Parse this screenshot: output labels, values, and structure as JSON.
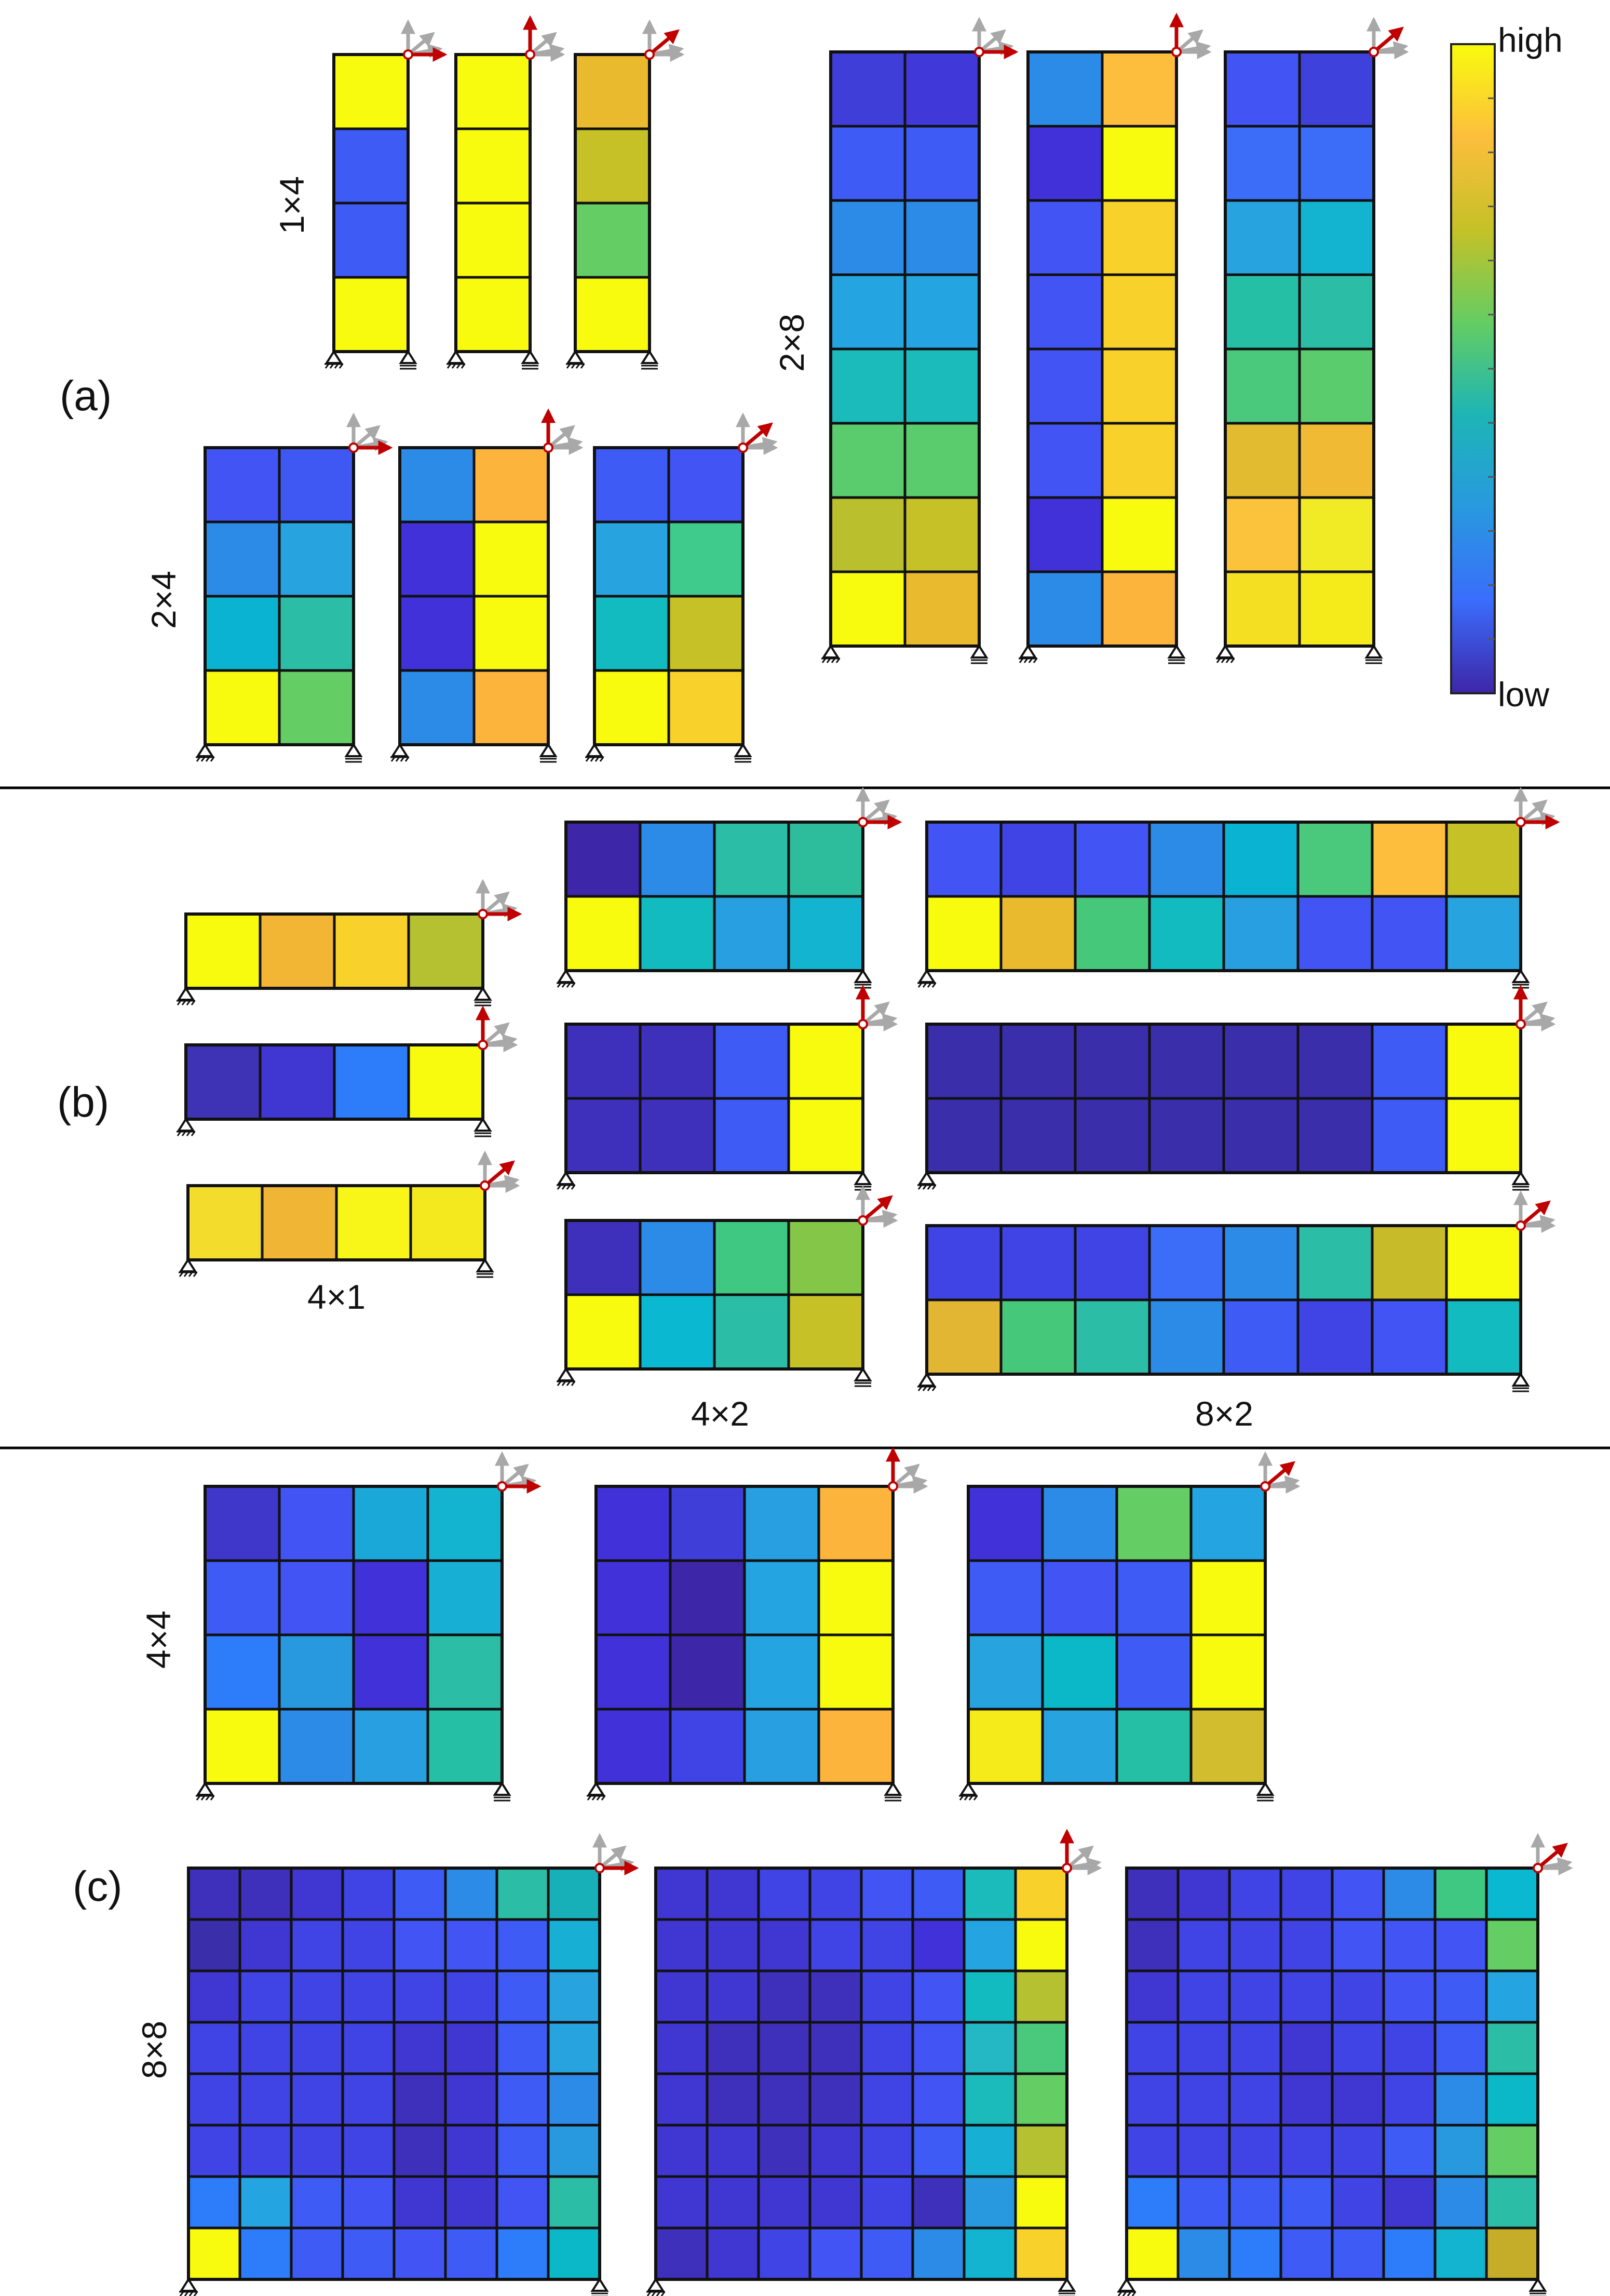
{
  "colorbar": {
    "high_label": "high",
    "low_label": "low",
    "stops": [
      "#f9fb0e",
      "#fcbe3c",
      "#c5c127",
      "#64cd63",
      "#1db5b5",
      "#2899df",
      "#3a6dfc",
      "#3e26a8"
    ]
  },
  "sections": [
    {
      "label": "(a)",
      "groups": [
        {
          "label": "1×4",
          "label_position": "left",
          "cols": 1,
          "rows": 4,
          "panels": [
            {
              "load": "horizontal",
              "cells": [
                [
                  "#f9fb0e"
                ],
                [
                  "#3e5bf5"
                ],
                [
                  "#3e5bf5"
                ],
                [
                  "#f9fb0e"
                ]
              ]
            },
            {
              "load": "vertical",
              "cells": [
                [
                  "#f9fb0e"
                ],
                [
                  "#f9fb0e"
                ],
                [
                  "#f9fb0e"
                ],
                [
                  "#f9fb0e"
                ]
              ]
            },
            {
              "load": "diagonal",
              "cells": [
                [
                  "#e9b92e"
                ],
                [
                  "#c5c127"
                ],
                [
                  "#64cd63"
                ],
                [
                  "#f9fb0e"
                ]
              ]
            }
          ]
        },
        {
          "label": "2×4",
          "label_position": "left",
          "cols": 2,
          "rows": 4,
          "panels": [
            {
              "load": "horizontal",
              "cells": [
                [
                  "#4255f4",
                  "#4058f3"
                ],
                [
                  "#2d8be8",
                  "#27a3e0"
                ],
                [
                  "#0ab3d2",
                  "#2cbda6"
                ],
                [
                  "#f9fb0e",
                  "#64cd63"
                ]
              ]
            },
            {
              "load": "vertical",
              "cells": [
                [
                  "#2d8be8",
                  "#fcb43c"
                ],
                [
                  "#4032d8",
                  "#f9fb0e"
                ],
                [
                  "#4032d8",
                  "#f9fb0e"
                ],
                [
                  "#2d8be8",
                  "#fcb43c"
                ]
              ]
            },
            {
              "load": "diagonal",
              "cells": [
                [
                  "#3e5bf5",
                  "#4255f4"
                ],
                [
                  "#27a3e0",
                  "#3fcb8b"
                ],
                [
                  "#12bbbf",
                  "#c5c127"
                ],
                [
                  "#f9fb0e",
                  "#f8d22a"
                ]
              ]
            }
          ]
        },
        {
          "label": "2×8",
          "label_position": "left",
          "cols": 2,
          "rows": 8,
          "panels": [
            {
              "load": "horizontal",
              "cells": [
                [
                  "#403ed9",
                  "#4038d9"
                ],
                [
                  "#3e5bf5",
                  "#3e5bf5"
                ],
                [
                  "#2d8be8",
                  "#2d8be8"
                ],
                [
                  "#24a4e0",
                  "#24a4e0"
                ],
                [
                  "#1cbbbb",
                  "#1cbbbb"
                ],
                [
                  "#5acc6e",
                  "#5acc6e"
                ],
                [
                  "#b9bf2d",
                  "#c5c127"
                ],
                [
                  "#f9fb0e",
                  "#e9b92e"
                ]
              ]
            },
            {
              "load": "vertical",
              "cells": [
                [
                  "#2d8be8",
                  "#fcbe3c"
                ],
                [
                  "#4032d8",
                  "#f9fb0e"
                ],
                [
                  "#4255f4",
                  "#f8d22a"
                ],
                [
                  "#4255f4",
                  "#f8d22a"
                ],
                [
                  "#4255f4",
                  "#f8d22a"
                ],
                [
                  "#4255f4",
                  "#f8d22a"
                ],
                [
                  "#4032d8",
                  "#f9fb0e"
                ],
                [
                  "#2d8be8",
                  "#fcb43c"
                ]
              ]
            },
            {
              "load": "diagonal",
              "cells": [
                [
                  "#4255f4",
                  "#3f41dd"
                ],
                [
                  "#3b6df9",
                  "#3b6df9"
                ],
                [
                  "#27a3e0",
                  "#12b4cf"
                ],
                [
                  "#25bfa5",
                  "#2cbda6"
                ],
                [
                  "#4ac87c",
                  "#5acc6e"
                ],
                [
                  "#e2bb31",
                  "#f0ba34"
                ],
                [
                  "#fbc23c",
                  "#f0eb24"
                ],
                [
                  "#f5df23",
                  "#f5eb1b"
                ]
              ]
            }
          ]
        }
      ]
    },
    {
      "label": "(b)",
      "groups": [
        {
          "label": "4×1",
          "label_position": "below",
          "cols": 4,
          "rows": 1,
          "panels": [
            {
              "load": "horizontal",
              "cells": [
                [
                  "#f9fb0e",
                  "#f2b534",
                  "#f8d22a",
                  "#b5c131"
                ]
              ]
            },
            {
              "load": "vertical",
              "cells": [
                [
                  "#3e32b5",
                  "#4036d2",
                  "#2d7cfa",
                  "#f9fb0e"
                ]
              ]
            },
            {
              "load": "diagonal",
              "cells": [
                [
                  "#f4dc2d",
                  "#f0b534",
                  "#f8f518",
                  "#f4e81f"
                ]
              ]
            }
          ]
        },
        {
          "label": "4×2",
          "label_position": "below",
          "cols": 4,
          "rows": 2,
          "panels": [
            {
              "load": "horizontal",
              "cells": [
                [
                  "#3e26a8",
                  "#2d8be8",
                  "#2cbda6",
                  "#2ebd9c"
                ],
                [
                  "#f9fb0e",
                  "#12bbbf",
                  "#279fe0",
                  "#12b4cf"
                ]
              ]
            },
            {
              "load": "vertical",
              "cells": [
                [
                  "#3e30ba",
                  "#3e30ba",
                  "#3e5bf5",
                  "#f9fb0e"
                ],
                [
                  "#3e30ba",
                  "#3e30ba",
                  "#3e5bf5",
                  "#f9fb0e"
                ]
              ]
            },
            {
              "load": "diagonal",
              "cells": [
                [
                  "#3e30ba",
                  "#2d8be8",
                  "#3fc882",
                  "#84c748"
                ],
                [
                  "#f9fb0e",
                  "#0ab8d2",
                  "#2cbda6",
                  "#c5c127"
                ]
              ]
            }
          ]
        },
        {
          "label": "8×2",
          "label_position": "below",
          "cols": 8,
          "rows": 2,
          "panels": [
            {
              "load": "horizontal",
              "cells": [
                [
                  "#4255f4",
                  "#4044e4",
                  "#4255f4",
                  "#2d8be8",
                  "#0ab3d2",
                  "#4ac87c",
                  "#fcbe3c",
                  "#c5c127"
                ],
                [
                  "#f9fb0e",
                  "#e9b92e",
                  "#46c87b",
                  "#12bbbf",
                  "#279fe0",
                  "#4255f4",
                  "#4255f4",
                  "#27a3e0"
                ]
              ]
            },
            {
              "load": "vertical",
              "cells": [
                [
                  "#3b2eaa",
                  "#3b2eaa",
                  "#3b2eaa",
                  "#3b2eaa",
                  "#3b2eaa",
                  "#3b2eaa",
                  "#3e5bf5",
                  "#f9fb0e"
                ],
                [
                  "#3b2eaa",
                  "#3b2eaa",
                  "#3b2eaa",
                  "#3b2eaa",
                  "#3b2eaa",
                  "#3b2eaa",
                  "#3e5bf5",
                  "#f9fb0e"
                ]
              ]
            },
            {
              "load": "diagonal",
              "cells": [
                [
                  "#4044e4",
                  "#4044e4",
                  "#4044e4",
                  "#3b6df9",
                  "#2d8be8",
                  "#2cbda6",
                  "#c8bb2a",
                  "#f9fb0e"
                ],
                [
                  "#e2b532",
                  "#46c87b",
                  "#2cbda6",
                  "#2d8be8",
                  "#3e5bf5",
                  "#4044e4",
                  "#4255f4",
                  "#12bbbf"
                ]
              ]
            }
          ]
        }
      ]
    },
    {
      "label": "(c)",
      "groups": [
        {
          "label": "4×4",
          "label_position": "left",
          "cols": 4,
          "rows": 4,
          "panels": [
            {
              "load": "horizontal",
              "cells": [
                [
                  "#3f37c9",
                  "#4255f4",
                  "#1aa8d8",
                  "#12b4cf"
                ],
                [
                  "#3e5bf5",
                  "#4255f4",
                  "#4032d8",
                  "#17b0d4"
                ],
                [
                  "#2d7cfa",
                  "#2899df",
                  "#4032d8",
                  "#2cbda6"
                ],
                [
                  "#f9fb0e",
                  "#2d8be8",
                  "#279fe0",
                  "#25bfa5"
                ]
              ]
            },
            {
              "load": "vertical",
              "cells": [
                [
                  "#4032d8",
                  "#403ed9",
                  "#279fe0",
                  "#fcb43c"
                ],
                [
                  "#4032d8",
                  "#3e26a8",
                  "#24a4e0",
                  "#f9fb0e"
                ],
                [
                  "#4032d8",
                  "#3e26a8",
                  "#24a4e0",
                  "#f9fb0e"
                ],
                [
                  "#4032d8",
                  "#4044e4",
                  "#279fe0",
                  "#fcb43c"
                ]
              ]
            },
            {
              "load": "diagonal",
              "cells": [
                [
                  "#4032d8",
                  "#2d8be8",
                  "#64cd63",
                  "#24a4e0"
                ],
                [
                  "#3e5bf5",
                  "#4255f4",
                  "#3e5bf5",
                  "#f9fb0e"
                ],
                [
                  "#27a3e0",
                  "#0ab8c8",
                  "#3e5bf5",
                  "#f9fb0e"
                ],
                [
                  "#f5eb1b",
                  "#27a3e0",
                  "#25bfa5",
                  "#d1bd2d"
                ]
              ]
            }
          ]
        },
        {
          "label": "8×8",
          "label_position": "left",
          "cols": 8,
          "rows": 8,
          "panels": [
            {
              "load": "horizontal",
              "cells": [
                [
                  "#3e30ba",
                  "#3e30ba",
                  "#4036d2",
                  "#4044e4",
                  "#3e5bf5",
                  "#2d8be8",
                  "#2cbda6",
                  "#17b0b8"
                ],
                [
                  "#3b2eaa",
                  "#4036d2",
                  "#4044e4",
                  "#4044e4",
                  "#4255f4",
                  "#4255f4",
                  "#3e5bf5",
                  "#17b0d4"
                ],
                [
                  "#4036d2",
                  "#4044e4",
                  "#4044e4",
                  "#4044e4",
                  "#4044e4",
                  "#4044e4",
                  "#3e5bf5",
                  "#27a3e0"
                ],
                [
                  "#4044e4",
                  "#4044e4",
                  "#4044e4",
                  "#4044e4",
                  "#4036d2",
                  "#4036d2",
                  "#3e5bf5",
                  "#27a3e0"
                ],
                [
                  "#4044e4",
                  "#4044e4",
                  "#4044e4",
                  "#4044e4",
                  "#3e30ba",
                  "#4036d2",
                  "#3e5bf5",
                  "#2d8be8"
                ],
                [
                  "#4044e4",
                  "#4044e4",
                  "#4044e4",
                  "#4044e4",
                  "#3e30ba",
                  "#4036d2",
                  "#3e5bf5",
                  "#2899df"
                ],
                [
                  "#2d7cfa",
                  "#24a4e0",
                  "#3e5bf5",
                  "#4255f4",
                  "#4036d2",
                  "#4036d2",
                  "#4255f4",
                  "#2cbda6"
                ],
                [
                  "#f9fb0e",
                  "#2d7cfa",
                  "#3e5bf5",
                  "#3e5bf5",
                  "#4255f4",
                  "#3e5bf5",
                  "#2d7cfa",
                  "#0ab8c8"
                ]
              ]
            },
            {
              "load": "vertical",
              "cells": [
                [
                  "#4036d2",
                  "#4036d2",
                  "#4044e4",
                  "#4044e4",
                  "#4255f4",
                  "#3e5bf5",
                  "#1cbbbb",
                  "#f8d22a"
                ],
                [
                  "#4036d2",
                  "#4036d2",
                  "#4036d2",
                  "#4044e4",
                  "#4044e4",
                  "#4032d8",
                  "#24a4e0",
                  "#f9fb0e"
                ],
                [
                  "#4036d2",
                  "#4036d2",
                  "#3e30ba",
                  "#3e30ba",
                  "#4044e4",
                  "#4255f4",
                  "#12bbbf",
                  "#b5c131"
                ],
                [
                  "#4036d2",
                  "#3e30ba",
                  "#3e30ba",
                  "#3e30ba",
                  "#4044e4",
                  "#4255f4",
                  "#24b7c4",
                  "#4ac87c"
                ],
                [
                  "#4036d2",
                  "#3e30ba",
                  "#3e30ba",
                  "#3e30ba",
                  "#4044e4",
                  "#4255f4",
                  "#1cbbbb",
                  "#64cd63"
                ],
                [
                  "#4036d2",
                  "#4036d2",
                  "#3e30ba",
                  "#4036d2",
                  "#4044e4",
                  "#3e5bf5",
                  "#17b0d4",
                  "#b5c131"
                ],
                [
                  "#4036d2",
                  "#4036d2",
                  "#4036d2",
                  "#4036d2",
                  "#4044e4",
                  "#3e30ba",
                  "#2899df",
                  "#f9fb0e"
                ],
                [
                  "#3e30ba",
                  "#4036d2",
                  "#4044e4",
                  "#4255f4",
                  "#3e5bf5",
                  "#2d8be8",
                  "#12b4cf",
                  "#f8d22a"
                ]
              ]
            },
            {
              "load": "diagonal",
              "cells": [
                [
                  "#3e30ba",
                  "#4036d2",
                  "#4044e4",
                  "#4044e4",
                  "#4255f4",
                  "#2d8be8",
                  "#3fc882",
                  "#0ab8d2"
                ],
                [
                  "#3e30ba",
                  "#4044e4",
                  "#4044e4",
                  "#4044e4",
                  "#4255f4",
                  "#4255f4",
                  "#4255f4",
                  "#64cd63"
                ],
                [
                  "#4036d2",
                  "#4044e4",
                  "#4044e4",
                  "#4044e4",
                  "#4044e4",
                  "#4255f4",
                  "#3e5bf5",
                  "#24a4e0"
                ],
                [
                  "#4044e4",
                  "#4044e4",
                  "#4044e4",
                  "#4036d2",
                  "#4044e4",
                  "#4044e4",
                  "#3e5bf5",
                  "#2cbda6"
                ],
                [
                  "#4044e4",
                  "#4044e4",
                  "#4044e4",
                  "#4036d2",
                  "#4036d2",
                  "#4044e4",
                  "#2d8be8",
                  "#0ab8c8"
                ],
                [
                  "#4044e4",
                  "#4044e4",
                  "#4044e4",
                  "#4044e4",
                  "#4044e4",
                  "#3e5bf5",
                  "#2899df",
                  "#64cd63"
                ],
                [
                  "#2d7cfa",
                  "#3e5bf5",
                  "#3e5bf5",
                  "#3e5bf5",
                  "#4044e4",
                  "#4036d2",
                  "#2d8be8",
                  "#2cbda6"
                ],
                [
                  "#f9fb0e",
                  "#2d8be8",
                  "#2d7cfa",
                  "#3e5bf5",
                  "#3e5bf5",
                  "#2d7cfa",
                  "#12b4cf",
                  "#c5ad2a"
                ]
              ]
            }
          ]
        }
      ]
    }
  ]
}
